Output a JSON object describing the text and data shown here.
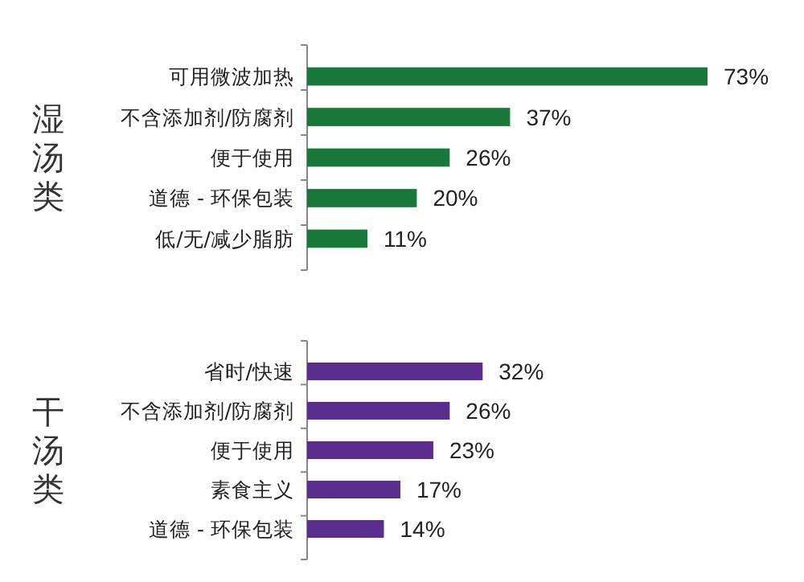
{
  "chart_data": [
    {
      "type": "bar",
      "orientation": "horizontal",
      "ylabel": "湿汤类",
      "categories": [
        "可用微波加热",
        "不含添加剂/防腐剂",
        "便于使用",
        "道德 - 环保包装",
        "低/无/减少脂肪"
      ],
      "values": [
        73,
        37,
        26,
        20,
        11
      ],
      "value_labels": [
        "73%",
        "37%",
        "26%",
        "20%",
        "11%"
      ],
      "color": "#18793a"
    },
    {
      "type": "bar",
      "orientation": "horizontal",
      "ylabel": "干汤类",
      "categories": [
        "省时/快速",
        "不含添加剂/防腐剂",
        "便于使用",
        "素食主义",
        "道德 - 环保包装"
      ],
      "values": [
        32,
        26,
        23,
        17,
        14
      ],
      "value_labels": [
        "32%",
        "26%",
        "23%",
        "17%",
        "14%"
      ],
      "color": "#5b2d8e"
    }
  ]
}
